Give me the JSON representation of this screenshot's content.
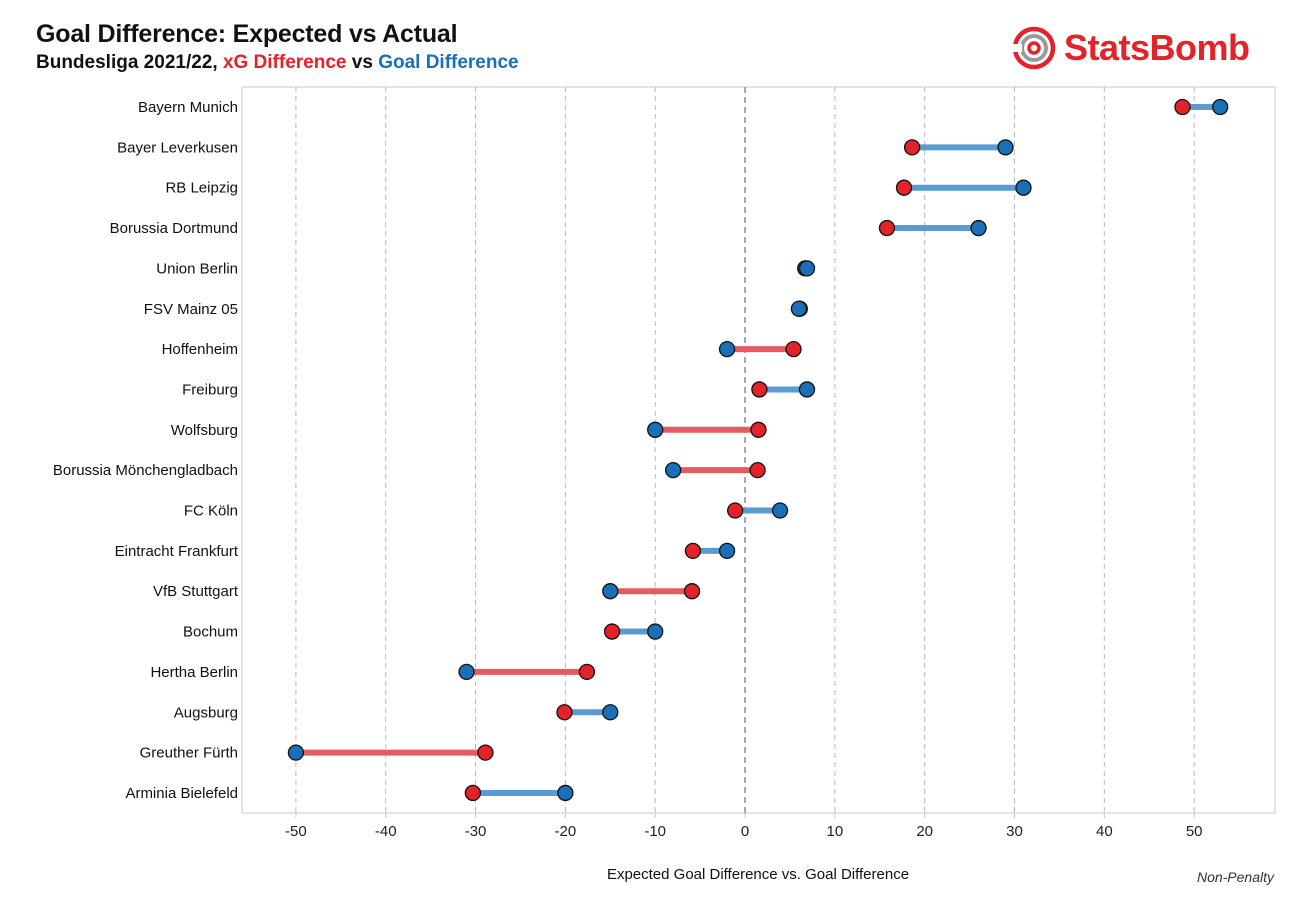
{
  "title": "Goal Difference: Expected vs Actual",
  "subtitle": {
    "league": "Bundesliga 2021/22,",
    "series_a": "xG Difference",
    "connector": "vs",
    "series_b": "Goal Difference"
  },
  "logo": {
    "text": "StatsBomb",
    "icon": "target-rings-icon",
    "color": "#e3222a"
  },
  "note": "Non-Penalty",
  "colors": {
    "xg": "#e3222a",
    "gd": "#1a6fb8",
    "xg_line": "#e65b60",
    "gd_line": "#5a9bd0"
  },
  "chart_data": {
    "type": "dumbbell",
    "xlabel": "Expected Goal Difference vs. Goal Difference",
    "xlim": [
      -56,
      59
    ],
    "xticks": [
      -50,
      -40,
      -30,
      -20,
      -10,
      0,
      10,
      20,
      30,
      40,
      50
    ],
    "grid": "vertical dashed",
    "series": [
      {
        "name": "xG Difference",
        "key": "xg"
      },
      {
        "name": "Goal Difference",
        "key": "gd"
      }
    ],
    "teams": [
      {
        "team": "Bayern Munich",
        "xg": 48.7,
        "gd": 52.9
      },
      {
        "team": "Bayer Leverkusen",
        "xg": 18.6,
        "gd": 29.0
      },
      {
        "team": "RB Leipzig",
        "xg": 17.7,
        "gd": 31.0
      },
      {
        "team": "Borussia Dortmund",
        "xg": 15.8,
        "gd": 26.0
      },
      {
        "team": "Union Berlin",
        "xg": 6.7,
        "gd": 6.9
      },
      {
        "team": "FSV Mainz 05",
        "xg": 6.1,
        "gd": 6.0
      },
      {
        "team": "Hoffenheim",
        "xg": 5.4,
        "gd": -2.0
      },
      {
        "team": "Freiburg",
        "xg": 1.6,
        "gd": 6.9
      },
      {
        "team": "Wolfsburg",
        "xg": 1.5,
        "gd": -10.0
      },
      {
        "team": "Borussia Mönchengladbach",
        "xg": 1.4,
        "gd": -8.0
      },
      {
        "team": "FC Köln",
        "xg": -1.1,
        "gd": 3.9
      },
      {
        "team": "Eintracht Frankfurt",
        "xg": -5.8,
        "gd": -2.0
      },
      {
        "team": "VfB Stuttgart",
        "xg": -5.9,
        "gd": -15.0
      },
      {
        "team": "Bochum",
        "xg": -14.8,
        "gd": -10.0
      },
      {
        "team": "Hertha Berlin",
        "xg": -17.6,
        "gd": -31.0
      },
      {
        "team": "Augsburg",
        "xg": -20.1,
        "gd": -15.0
      },
      {
        "team": "Greuther Fürth",
        "xg": -28.9,
        "gd": -50.0
      },
      {
        "team": "Arminia Bielefeld",
        "xg": -30.3,
        "gd": -20.0
      }
    ]
  }
}
